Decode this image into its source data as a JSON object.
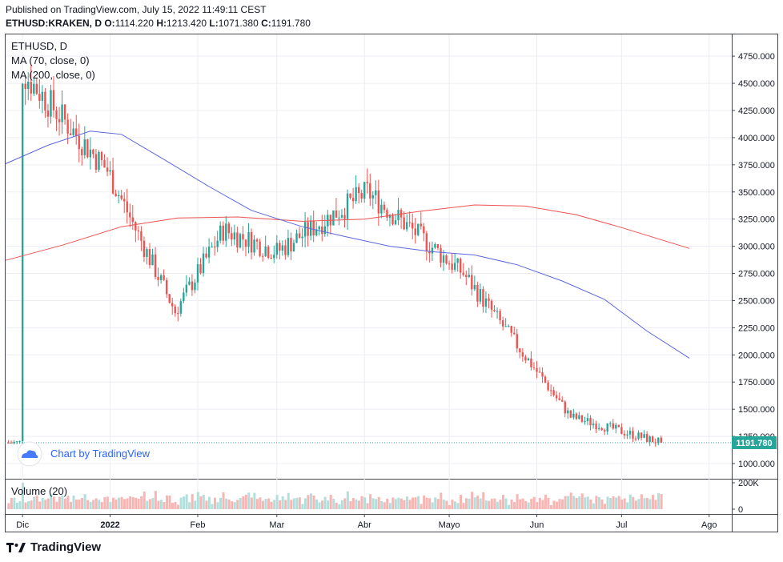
{
  "header": {
    "published": "Published on TradingView.com, July 15, 2022 11:49:11 CEST",
    "symbol": "ETHUSD:KRAKEN, D",
    "open_label": "O:",
    "open": "1114.220",
    "high_label": "H:",
    "high": "1213.420",
    "low_label": "L:",
    "low": "1071.380",
    "close_label": "C:",
    "close": "1191.780"
  },
  "legend": {
    "symbol": "ETHUSD, D",
    "ma70": "MA (70, close, 0)",
    "ma200": "MA (200, close, 0)",
    "volume": "Volume (20)"
  },
  "watermark": "Chart by TradingView",
  "footer_logo": "TradingView",
  "colors": {
    "up": "#26a69a",
    "down": "#ef5350",
    "up_vol": "#b2dfdb",
    "down_vol": "#f7b5b4",
    "ma70": "#5b67e0",
    "ma200": "#ef5350",
    "grid": "#ecedf2",
    "axis_text": "#131722"
  },
  "chart_data": {
    "type": "candlestick",
    "x_labels": [
      {
        "label": "Dic",
        "date": "2021-12-01"
      },
      {
        "label": "2022",
        "date": "2022-01-01"
      },
      {
        "label": "Feb",
        "date": "2022-02-01"
      },
      {
        "label": "Mar",
        "date": "2022-03-01"
      },
      {
        "label": "Abr",
        "date": "2022-04-01"
      },
      {
        "label": "Mayo",
        "date": "2022-05-01"
      },
      {
        "label": "Jun",
        "date": "2022-06-01"
      },
      {
        "label": "Jul",
        "date": "2022-07-01"
      },
      {
        "label": "Ago",
        "date": "2022-08-01"
      }
    ],
    "y_ticks": [
      "1000.000",
      "1250.000",
      "1500.000",
      "1750.000",
      "2000.000",
      "2250.000",
      "2500.000",
      "2750.000",
      "3000.000",
      "3250.000",
      "3500.000",
      "3750.000",
      "4000.000",
      "4250.000",
      "4500.000",
      "4750.000"
    ],
    "y_range": [
      860,
      4950
    ],
    "last_price": "1191.780",
    "last_price_value": 1191.78,
    "volume_ticks": [
      "200K",
      "0"
    ],
    "volume_range": [
      0,
      200000
    ],
    "x_range": [
      "2021-11-25",
      "2022-08-09"
    ],
    "candles_monthly_close": [
      {
        "date": "2021-12-01",
        "close": 4600
      },
      {
        "date": "2021-12-31",
        "close": 3700
      },
      {
        "date": "2022-01-24",
        "close": 2400
      },
      {
        "date": "2022-02-10",
        "close": 3150
      },
      {
        "date": "2022-03-01",
        "close": 2950
      },
      {
        "date": "2022-04-02",
        "close": 3500
      },
      {
        "date": "2022-05-06",
        "close": 2750
      },
      {
        "date": "2022-06-13",
        "close": 1430
      },
      {
        "date": "2022-07-15",
        "close": 1191.78
      }
    ],
    "ma70_series": [
      {
        "date": "2021-11-25",
        "v": 3760
      },
      {
        "date": "2021-12-10",
        "v": 3930
      },
      {
        "date": "2021-12-25",
        "v": 4060
      },
      {
        "date": "2022-01-05",
        "v": 4030
      },
      {
        "date": "2022-01-20",
        "v": 3800
      },
      {
        "date": "2022-02-05",
        "v": 3550
      },
      {
        "date": "2022-02-20",
        "v": 3330
      },
      {
        "date": "2022-03-10",
        "v": 3180
      },
      {
        "date": "2022-03-25",
        "v": 3090
      },
      {
        "date": "2022-04-10",
        "v": 3000
      },
      {
        "date": "2022-04-25",
        "v": 2950
      },
      {
        "date": "2022-05-10",
        "v": 2920
      },
      {
        "date": "2022-05-25",
        "v": 2830
      },
      {
        "date": "2022-06-10",
        "v": 2680
      },
      {
        "date": "2022-06-25",
        "v": 2510
      },
      {
        "date": "2022-07-10",
        "v": 2220
      },
      {
        "date": "2022-07-25",
        "v": 1970
      }
    ],
    "ma200_series": [
      {
        "date": "2021-11-25",
        "v": 2870
      },
      {
        "date": "2021-12-15",
        "v": 3010
      },
      {
        "date": "2022-01-05",
        "v": 3180
      },
      {
        "date": "2022-01-25",
        "v": 3260
      },
      {
        "date": "2022-02-15",
        "v": 3270
      },
      {
        "date": "2022-03-10",
        "v": 3230
      },
      {
        "date": "2022-04-01",
        "v": 3250
      },
      {
        "date": "2022-04-20",
        "v": 3320
      },
      {
        "date": "2022-05-10",
        "v": 3380
      },
      {
        "date": "2022-05-28",
        "v": 3370
      },
      {
        "date": "2022-06-15",
        "v": 3290
      },
      {
        "date": "2022-06-30",
        "v": 3180
      },
      {
        "date": "2022-07-25",
        "v": 2980
      }
    ]
  }
}
